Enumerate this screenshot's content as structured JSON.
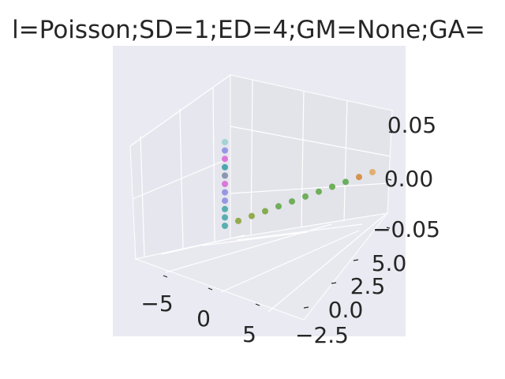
{
  "chart_data": {
    "type": "scatter",
    "projection": "3d",
    "title": "l=Poisson;SD=1;ED=4;GM=None;GA=",
    "xlabel": "",
    "ylabel": "",
    "zlabel": "",
    "x_ticks": [
      "−5",
      "0",
      "5"
    ],
    "y_ticks": [
      "−2.5",
      "0.0",
      "2.5",
      "5.0"
    ],
    "z_ticks": [
      "−0.05",
      "0.00",
      "0.05"
    ],
    "grid": true,
    "background": "#eaeaf2",
    "series": [
      {
        "points": [
          {
            "label": "",
            "color": "#4aa7a9",
            "x": -2.0,
            "y": 0.0,
            "z": 0.0
          },
          {
            "label": "",
            "color": "#4aa7a9",
            "x": -2.0,
            "y": 0.5,
            "z": 0.0
          },
          {
            "label": "",
            "color": "#4aa7a9",
            "x": -2.0,
            "y": 1.0,
            "z": 0.0
          },
          {
            "label": "",
            "color": "#8d8ee0",
            "x": -2.0,
            "y": 1.5,
            "z": 0.0
          },
          {
            "label": "",
            "color": "#8d8ee0",
            "x": -2.0,
            "y": 2.0,
            "z": 0.0
          },
          {
            "label": "",
            "color": "#d86bd7",
            "x": -2.0,
            "y": 2.5,
            "z": 0.0
          },
          {
            "label": "",
            "color": "#7f8ea6",
            "x": -2.0,
            "y": 3.0,
            "z": 0.0
          },
          {
            "label": "",
            "color": "#3aa0a8",
            "x": -2.0,
            "y": 3.5,
            "z": 0.0
          },
          {
            "label": "",
            "color": "#d86bd7",
            "x": -2.0,
            "y": 4.0,
            "z": 0.0
          },
          {
            "label": "",
            "color": "#8d8ee0",
            "x": -2.0,
            "y": 4.5,
            "z": 0.0
          },
          {
            "label": "",
            "color": "#9bd0d0",
            "x": -2.0,
            "y": 5.0,
            "z": 0.0
          },
          {
            "label": "",
            "color": "#8aa33a",
            "x": -1.0,
            "y": 0.0,
            "z": 0.0
          },
          {
            "label": "",
            "color": "#8aa33a",
            "x": 0.0,
            "y": 0.0,
            "z": 0.0
          },
          {
            "label": "",
            "color": "#7aa53f",
            "x": 1.0,
            "y": 0.0,
            "z": 0.0
          },
          {
            "label": "",
            "color": "#62a84a",
            "x": 2.0,
            "y": 0.0,
            "z": 0.0
          },
          {
            "label": "",
            "color": "#62a84a",
            "x": 3.0,
            "y": 0.0,
            "z": 0.0
          },
          {
            "label": "",
            "color": "#62a84a",
            "x": 4.0,
            "y": 0.0,
            "z": 0.0
          },
          {
            "label": "",
            "color": "#62a84a",
            "x": 5.0,
            "y": 0.0,
            "z": 0.0
          },
          {
            "label": "",
            "color": "#62a84a",
            "x": 6.0,
            "y": 0.0,
            "z": 0.0
          },
          {
            "label": "",
            "color": "#5aa84e",
            "x": 7.0,
            "y": 0.0,
            "z": 0.0
          },
          {
            "label": "",
            "color": "#d38a3c",
            "x": 8.0,
            "y": 0.0,
            "z": 0.0
          },
          {
            "label": "",
            "color": "#e0a860",
            "x": 9.0,
            "y": 0.0,
            "z": 0.0
          }
        ]
      }
    ]
  }
}
